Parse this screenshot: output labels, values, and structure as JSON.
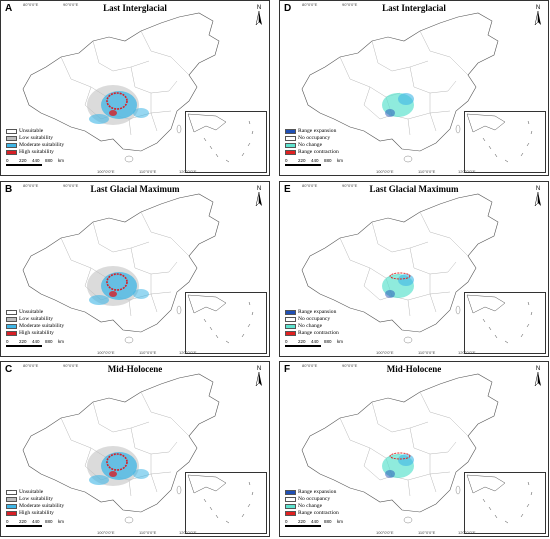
{
  "panels": [
    {
      "letter": "A",
      "title": "Last Interglacial",
      "legend_type": "suitability"
    },
    {
      "letter": "B",
      "title": "Last Glacial Maximum",
      "legend_type": "suitability"
    },
    {
      "letter": "C",
      "title": "Mid-Holocene",
      "legend_type": "suitability"
    },
    {
      "letter": "D",
      "title": "Last Interglacial",
      "legend_type": "change"
    },
    {
      "letter": "E",
      "title": "Last Glacial Maximum",
      "legend_type": "change"
    },
    {
      "letter": "F",
      "title": "Mid-Holocene",
      "legend_type": "change"
    }
  ],
  "legends": {
    "suitability": [
      {
        "label": "Unsuitable",
        "color": "#ffffff"
      },
      {
        "label": "Low suitability",
        "color": "#bdbdbd"
      },
      {
        "label": "Moderate suitability",
        "color": "#3fb6e6"
      },
      {
        "label": "High suitability",
        "color": "#d71f26"
      }
    ],
    "change": [
      {
        "label": "Range expansion",
        "color": "#1f4fb5"
      },
      {
        "label": "No occupancy",
        "color": "#ffffff"
      },
      {
        "label": "No change",
        "color": "#5fe3cf"
      },
      {
        "label": "Range contraction",
        "color": "#e02020"
      }
    ]
  },
  "scale_labels": [
    "0",
    "220",
    "440",
    "880"
  ],
  "scale_unit": "km",
  "north_label": "N",
  "lon_ticks": [
    "80°0'0\"E",
    "90°0'0\"E",
    "100°0'0\"E",
    "110°0'0\"E",
    "120°0'0\"E",
    "130°0'0\"E"
  ],
  "lat_ticks": [
    "50°0'0\"N",
    "40°0'0\"N",
    "30°0'0\"N",
    "20°0'0\"N"
  ]
}
